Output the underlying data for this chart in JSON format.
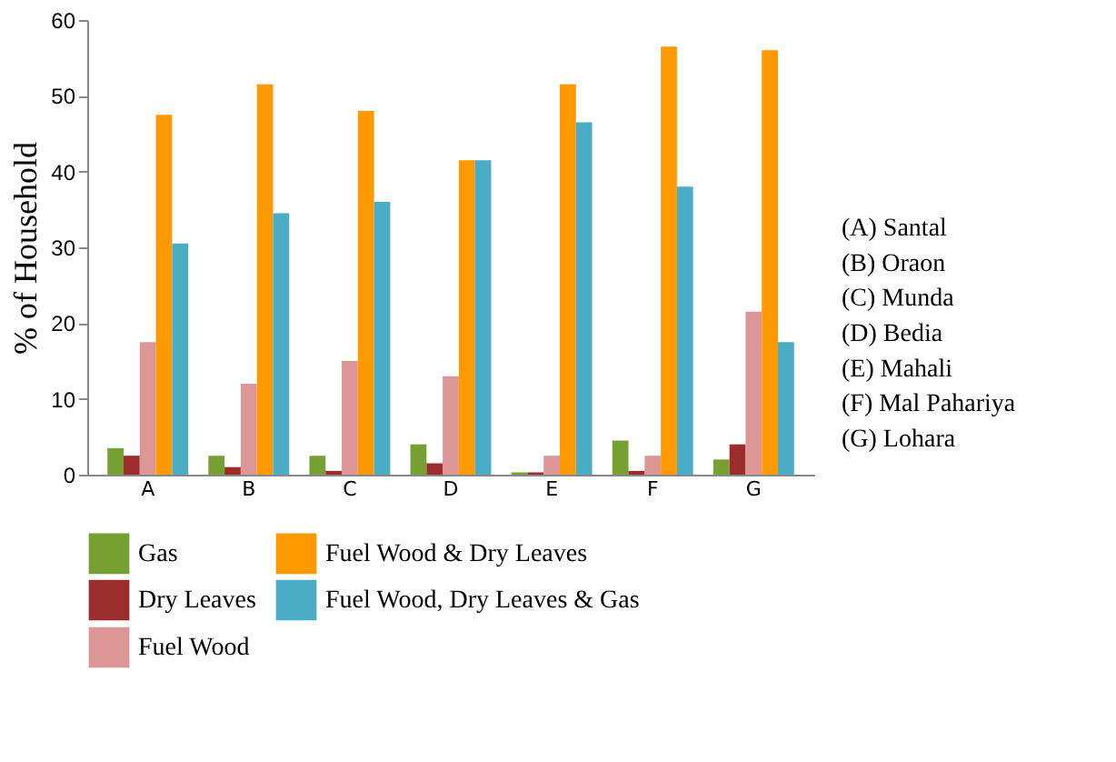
{
  "chart_data": {
    "type": "bar",
    "ylabel": "% of Household",
    "categories": [
      "A",
      "B",
      "C",
      "D",
      "E",
      "F",
      "G"
    ],
    "series": [
      {
        "name": "Gas",
        "color": "#77a033",
        "values": [
          3.5,
          2.5,
          2.5,
          4,
          0.3,
          4.5,
          2
        ]
      },
      {
        "name": "Dry Leaves",
        "color": "#9b2d2d",
        "values": [
          2.5,
          1,
          0.5,
          1.5,
          0.3,
          0.5,
          4
        ]
      },
      {
        "name": "Fuel Wood",
        "color": "#dc9696",
        "values": [
          17.5,
          12,
          15,
          13,
          2.5,
          2.5,
          21.5
        ]
      },
      {
        "name": "Fuel Wood & Dry Leaves",
        "color": "#ff9900",
        "values": [
          47.5,
          51.5,
          48,
          41.5,
          51.5,
          56.5,
          56
        ]
      },
      {
        "name": "Fuel Wood, Dry Leaves & Gas",
        "color": "#4bacc6",
        "values": [
          30.5,
          34.5,
          36,
          41.5,
          46.5,
          38,
          17.5
        ]
      }
    ],
    "ylim": [
      0,
      60
    ],
    "yticks": [
      0,
      10,
      20,
      30,
      40,
      50,
      60
    ],
    "grid": false,
    "legend": "bottom",
    "annotations": [
      "(A) Santal",
      "(B) Oraon",
      "(C) Munda",
      "(D) Bedia",
      "(E) Mahali",
      "(F) Mal Pahariya",
      "(G) Lohara"
    ]
  }
}
